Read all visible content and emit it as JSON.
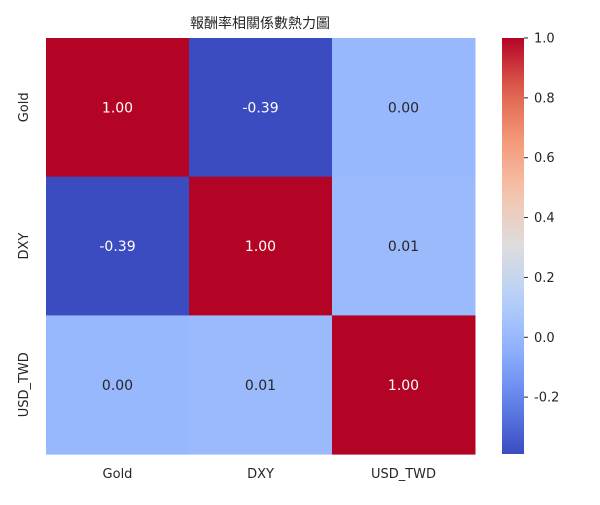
{
  "chart_data": {
    "type": "heatmap",
    "title": "報酬率相關係數熱力圖",
    "x_categories": [
      "Gold",
      "DXY",
      "USD_TWD"
    ],
    "y_categories": [
      "Gold",
      "DXY",
      "USD_TWD"
    ],
    "values": [
      [
        1.0,
        -0.39,
        0.0
      ],
      [
        -0.39,
        1.0,
        0.01
      ],
      [
        0.0,
        0.01,
        1.0
      ]
    ],
    "cell_labels": [
      [
        "1.00",
        "-0.39",
        "0.00"
      ],
      [
        "-0.39",
        "1.00",
        "0.01"
      ],
      [
        "0.00",
        "0.01",
        "1.00"
      ]
    ],
    "colormap": "coolwarm",
    "colorbar": {
      "range": [
        -0.39,
        1.0
      ],
      "ticks": [
        -0.2,
        0.0,
        0.2,
        0.4,
        0.6,
        0.8,
        1.0
      ],
      "tick_labels": [
        "-0.2",
        "0.0",
        "0.2",
        "0.4",
        "0.6",
        "0.8",
        "1.0"
      ],
      "placement": "right"
    }
  }
}
